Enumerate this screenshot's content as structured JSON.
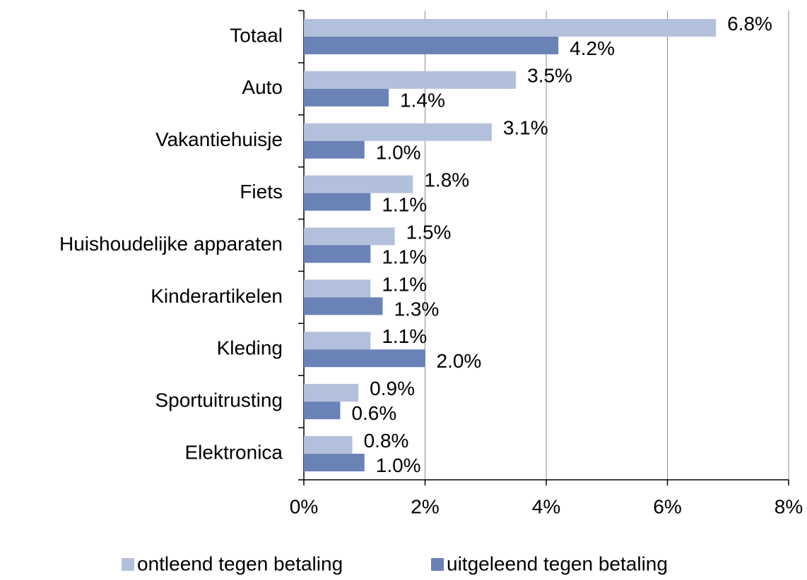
{
  "chart_data": {
    "type": "hbar",
    "categories": [
      "Totaal",
      "Auto",
      "Vakantiehuisje",
      "Fiets",
      "Huishoudelijke apparaten",
      "Kinderartikelen",
      "Kleding",
      "Sportuitrusting",
      "Elektronica"
    ],
    "series": [
      {
        "name": "ontleend tegen betaling",
        "color": "#b3c0db",
        "values": [
          6.8,
          3.5,
          3.1,
          1.8,
          1.5,
          1.1,
          1.1,
          0.9,
          0.8
        ],
        "value_labels": [
          "6.8%",
          "3.5%",
          "3.1%",
          "1.8%",
          "1.5%",
          "1.1%",
          "1.1%",
          "0.9%",
          "0.8%"
        ]
      },
      {
        "name": "uitgeleend tegen betaling",
        "color": "#6a82b6",
        "values": [
          4.2,
          1.4,
          1.0,
          1.1,
          1.1,
          1.3,
          2.0,
          0.6,
          1.0
        ],
        "value_labels": [
          "4.2%",
          "1.4%",
          "1.0%",
          "1.1%",
          "1.1%",
          "1.3%",
          "2.0%",
          "0.6%",
          "1.0%"
        ]
      }
    ],
    "xlim": [
      0,
      8
    ],
    "xticks": [
      {
        "value": 0,
        "label": "0%"
      },
      {
        "value": 2,
        "label": "2%"
      },
      {
        "value": 4,
        "label": "4%"
      },
      {
        "value": 6,
        "label": "6%"
      },
      {
        "value": 8,
        "label": "8%"
      }
    ],
    "grid": true,
    "legend": "bottom"
  }
}
